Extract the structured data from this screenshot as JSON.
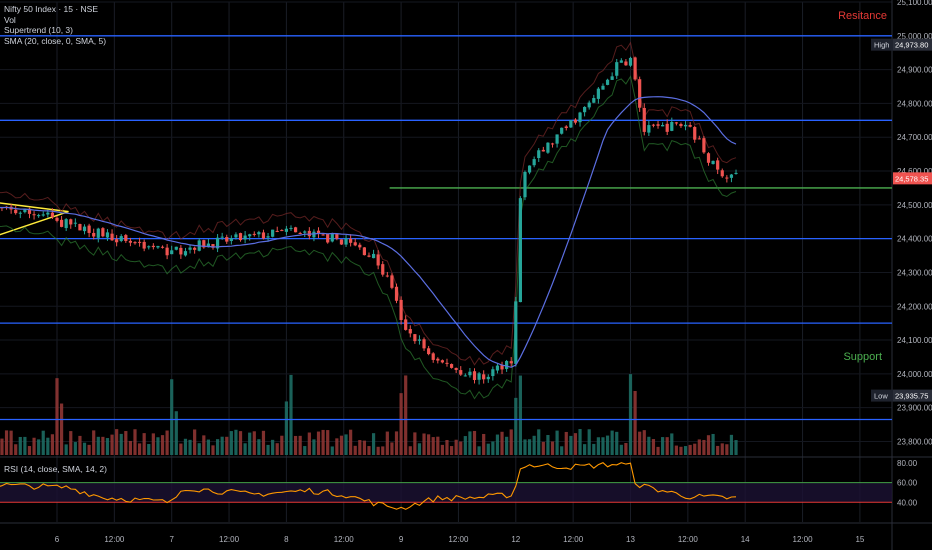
{
  "legend": {
    "symbol": "Nifty 50 Index · 15 · NSE",
    "vol": "Vol",
    "supertrend": "Supertrend (10, 3)",
    "sma": "SMA (20, close, 0, SMA, 5)",
    "rsi": "RSI (14, close, SMA, 14, 2)"
  },
  "annotations": {
    "resistance": "Resitance",
    "support": "Support"
  },
  "colors": {
    "background": "#000000",
    "up": "#26a69a",
    "down": "#ef5350",
    "level_line": "#2962ff",
    "green_line": "#4caf50",
    "sma": "#5b6ee1",
    "rsi": "#ff9800",
    "resistance_text": "#e53935",
    "support_text": "#4caf50",
    "wedge": "#ffeb3b"
  },
  "chart_data": {
    "type": "candlestick",
    "y_axis": {
      "range": [
        23760,
        25100
      ],
      "ticks": [
        "25,100.00",
        "25,000.00",
        "24,900.00",
        "24,800.00",
        "24,700.00",
        "24,600.00",
        "24,500.00",
        "24,400.00",
        "24,300.00",
        "24,200.00",
        "24,100.00",
        "24,000.00",
        "23,900.00",
        "23,800.00"
      ]
    },
    "x_axis": {
      "ticks": [
        {
          "label": "6",
          "pos": 0.0
        },
        {
          "label": "12:00",
          "pos": 0.5
        },
        {
          "label": "7",
          "pos": 1.0
        },
        {
          "label": "12:00",
          "pos": 1.5
        },
        {
          "label": "8",
          "pos": 2.0
        },
        {
          "label": "12:00",
          "pos": 2.5
        },
        {
          "label": "9",
          "pos": 3.0
        },
        {
          "label": "12:00",
          "pos": 3.5
        },
        {
          "label": "12",
          "pos": 4.0
        },
        {
          "label": "12:00",
          "pos": 4.5
        },
        {
          "label": "13",
          "pos": 5.0
        },
        {
          "label": "12:00",
          "pos": 5.5
        },
        {
          "label": "14",
          "pos": 6.0
        },
        {
          "label": "12:00",
          "pos": 6.5
        },
        {
          "label": "15",
          "pos": 7.0
        }
      ]
    },
    "price_marks": {
      "high": {
        "label": "High",
        "value": "24,973.80",
        "price": 24973.8
      },
      "low": {
        "label": "Low",
        "value": "23,935.75",
        "price": 23935.75
      },
      "last": {
        "value": "24,578.35",
        "price": 24578.35
      }
    },
    "horizontal_levels": [
      25000,
      24750,
      24400,
      24150,
      23865
    ],
    "green_level": {
      "price": 24550,
      "from": 2.9
    },
    "wedge": [
      [
        -0.6,
        24510
      ],
      [
        0.1,
        24480
      ],
      [
        -0.6,
        24400
      ]
    ],
    "keypoints": [
      {
        "t": -0.6,
        "p": 24490
      },
      {
        "t": -0.1,
        "p": 24470
      },
      {
        "t": 0.0,
        "p": 24450
      },
      {
        "t": 0.5,
        "p": 24405
      },
      {
        "t": 1.0,
        "p": 24360
      },
      {
        "t": 1.2,
        "p": 24380
      },
      {
        "t": 1.6,
        "p": 24400
      },
      {
        "t": 2.0,
        "p": 24420
      },
      {
        "t": 2.5,
        "p": 24395
      },
      {
        "t": 2.75,
        "p": 24350
      },
      {
        "t": 2.92,
        "p": 24260
      },
      {
        "t": 3.0,
        "p": 24150
      },
      {
        "t": 3.3,
        "p": 24040
      },
      {
        "t": 3.7,
        "p": 23985
      },
      {
        "t": 3.98,
        "p": 24050
      },
      {
        "t": 4.05,
        "p": 24600
      },
      {
        "t": 4.3,
        "p": 24680
      },
      {
        "t": 4.65,
        "p": 24800
      },
      {
        "t": 4.9,
        "p": 24920
      },
      {
        "t": 5.0,
        "p": 24930
      },
      {
        "t": 5.12,
        "p": 24720
      },
      {
        "t": 5.5,
        "p": 24740
      },
      {
        "t": 5.75,
        "p": 24600
      },
      {
        "t": 5.95,
        "p": 24578
      }
    ],
    "rsi": {
      "range": [
        20,
        85
      ],
      "ticks": [
        "80.00",
        "60.00",
        "40.00"
      ],
      "upper": 60,
      "lower": 40,
      "keypoints": [
        {
          "t": -0.6,
          "v": 58
        },
        {
          "t": 0.1,
          "v": 55
        },
        {
          "t": 0.4,
          "v": 45
        },
        {
          "t": 1.0,
          "v": 40
        },
        {
          "t": 1.1,
          "v": 55
        },
        {
          "t": 1.7,
          "v": 48
        },
        {
          "t": 2.2,
          "v": 52
        },
        {
          "t": 2.5,
          "v": 48
        },
        {
          "t": 2.8,
          "v": 38
        },
        {
          "t": 3.0,
          "v": 34
        },
        {
          "t": 3.3,
          "v": 44
        },
        {
          "t": 3.7,
          "v": 45
        },
        {
          "t": 3.98,
          "v": 48
        },
        {
          "t": 4.05,
          "v": 78
        },
        {
          "t": 4.5,
          "v": 76
        },
        {
          "t": 4.9,
          "v": 79
        },
        {
          "t": 5.0,
          "v": 77
        },
        {
          "t": 5.05,
          "v": 58
        },
        {
          "t": 5.5,
          "v": 46
        },
        {
          "t": 5.95,
          "v": 44
        }
      ]
    }
  }
}
